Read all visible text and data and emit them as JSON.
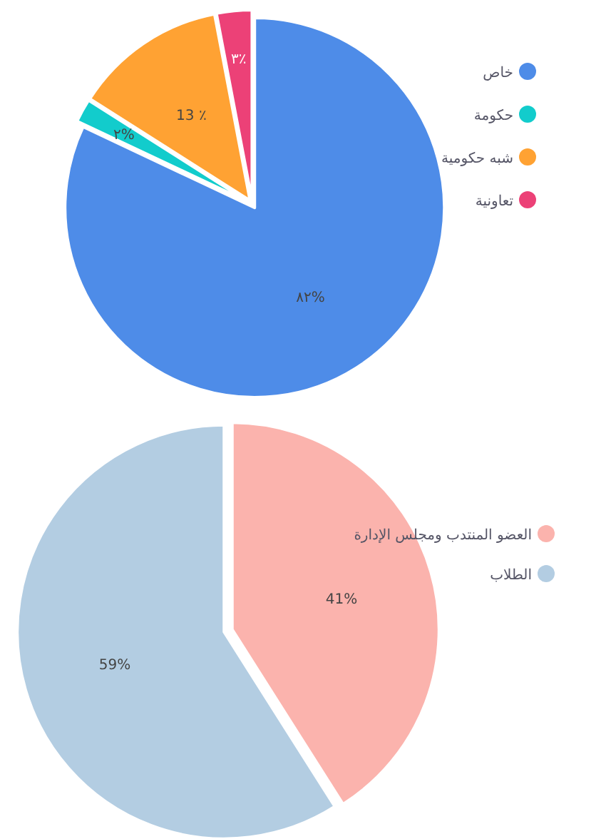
{
  "chart_data": [
    {
      "type": "pie",
      "categories": [
        "خاص",
        "حكومة",
        "شبه حكومية",
        "تعاونية"
      ],
      "values": [
        82,
        2,
        13,
        3
      ],
      "colors": [
        "#4e8ce8",
        "#12cccc",
        "#ffa233",
        "#ec4177"
      ],
      "value_labels": [
        "٨٢%",
        "٢%",
        "13 ٪",
        "٣٪"
      ],
      "legend": "right"
    },
    {
      "type": "pie",
      "categories": [
        "العضو المنتدب ومجلس الإدارة",
        "الطلاب"
      ],
      "values": [
        41,
        59
      ],
      "colors": [
        "#fbb3ad",
        "#b3cde2"
      ],
      "value_labels": [
        "41%",
        "59%"
      ],
      "legend": "right"
    }
  ]
}
